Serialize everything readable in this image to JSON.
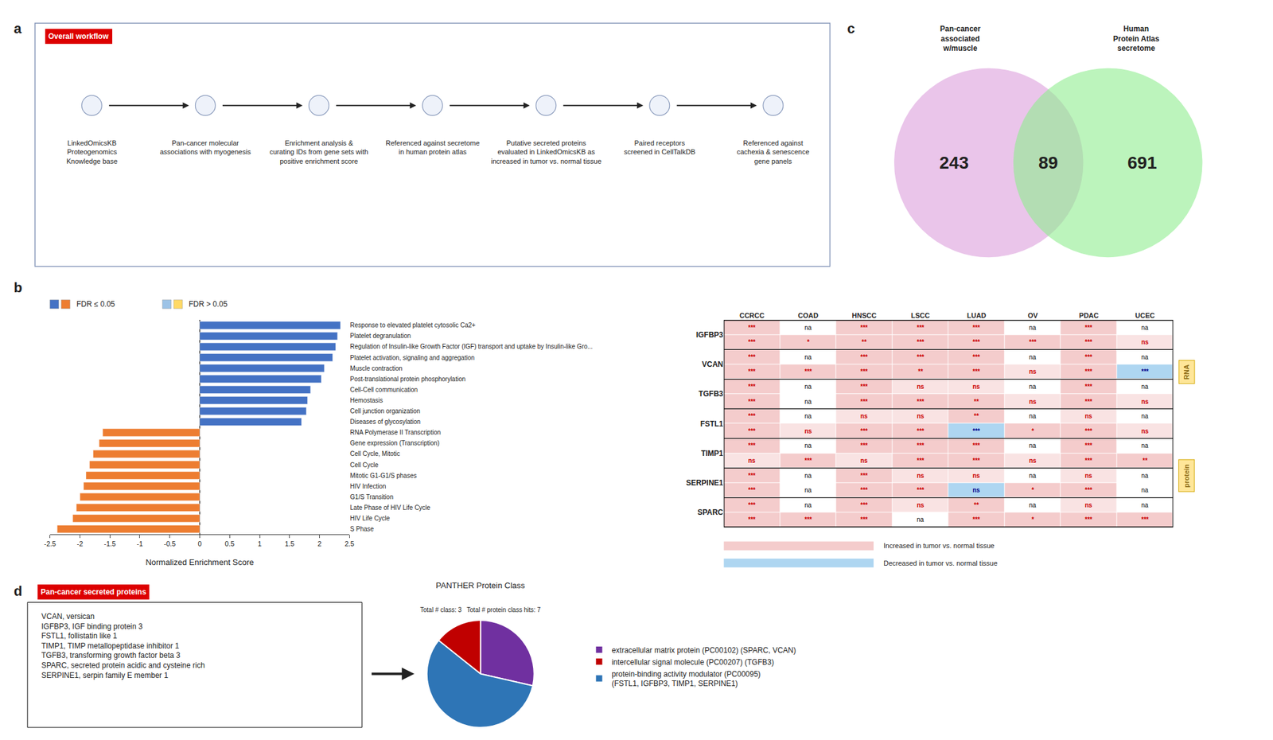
{
  "chart_data": [
    {
      "type": "workflow",
      "panel": "a",
      "title": "Overall workflow",
      "color": "#DD0000",
      "steps": [
        "LinkedOmicsKB\nProteogenomics\nKnowledge base",
        "Pan-cancer molecular\nassociations with myogenesis",
        "Enrichment analysis &\ncurating IDs from gene sets with\npositive enrichment score",
        "Referenced against secretome\nin human protein atlas",
        "Putative secreted proteins\nevaluated in LinkedOmicsKB as\nincreased in tumor vs. normal tissue",
        "Paired receptors\nscreened in CellTalkDB",
        "Referenced against\ncachexia & senescence\ngene panels"
      ]
    },
    {
      "type": "venn",
      "panel": "c",
      "sets": [
        "Pan-cancer\nassociated\nw/muscle",
        "Human\nProtein Atlas\nsecretome"
      ],
      "values": [
        243,
        89,
        691
      ],
      "colors": [
        "#DDA0DD",
        "#90EE90"
      ]
    },
    {
      "type": "bar",
      "panel": "b",
      "orientation": "horizontal",
      "categories": [
        "Response to elevated platelet cytosolic Ca2+",
        "Platelet degranulation",
        "Regulation of Insulin-like Growth Factor (IGF) transport and uptake by Insulin-like Gro...",
        "Platelet activation, signaling and aggregation",
        "Muscle contraction",
        "Post-translational protein phosphorylation",
        "Cell-Cell communication",
        "Hemostasis",
        "Cell junction organization",
        "Diseases of glycosylation",
        "RNA Polymerase II Transcription",
        "Gene expression (Transcription)",
        "Cell Cycle, Mitotic",
        "Cell Cycle",
        "Mitotic G1-G1/S phases",
        "HIV Infection",
        "G1/S Transition",
        "Late Phase of HIV Life Cycle",
        "HIV Life Cycle",
        "S Phase"
      ],
      "values": [
        2.35,
        2.3,
        2.27,
        2.22,
        2.08,
        2.03,
        1.85,
        1.8,
        1.78,
        1.7,
        -1.62,
        -1.68,
        -1.78,
        -1.84,
        -1.9,
        -1.94,
        -2.0,
        -2.06,
        -2.12,
        -2.38
      ],
      "colors": [
        "#4472C4",
        "#4472C4",
        "#4472C4",
        "#4472C4",
        "#4472C4",
        "#4472C4",
        "#4472C4",
        "#4472C4",
        "#4472C4",
        "#4472C4",
        "#ED7D31",
        "#ED7D31",
        "#ED7D31",
        "#ED7D31",
        "#ED7D31",
        "#ED7D31",
        "#ED7D31",
        "#ED7D31",
        "#ED7D31",
        "#ED7D31"
      ],
      "xlabel": "Normalized Enrichment Score",
      "xlim": [
        -2.5,
        2.5
      ],
      "xticks": [
        -2.5,
        -2,
        -1.5,
        -1,
        -0.5,
        0,
        0.5,
        1,
        1.5,
        2,
        2.5
      ],
      "grid": false,
      "legend_items": [
        {
          "label": "FDR ≤ 0.05",
          "colors": [
            "#4472C4",
            "#ED7D31"
          ]
        },
        {
          "label": "FDR > 0.05",
          "colors": [
            "#9DC3E6",
            "#FFD966"
          ]
        }
      ]
    },
    {
      "type": "heatmap",
      "rows": [
        "IGFBP3",
        "VCAN",
        "TGFB3",
        "FSTL1",
        "TIMP1",
        "SERPINE1",
        "SPARC"
      ],
      "columns": [
        "CCRCC",
        "COAD",
        "HNSCC",
        "LSCC",
        "LUAD",
        "OV",
        "PDAC",
        "UCEC"
      ],
      "row_groups": [
        "RNA",
        "protein"
      ],
      "rna": [
        [
          "***",
          "na",
          "***",
          "***",
          "***",
          "na",
          "***",
          "na"
        ],
        [
          "***",
          "na",
          "***",
          "***",
          "***",
          "na",
          "***",
          "na"
        ],
        [
          "***",
          "na",
          "***",
          "ns",
          "ns",
          "na",
          "***",
          "na"
        ],
        [
          "***",
          "na",
          "ns",
          "ns",
          "**",
          "na",
          "ns",
          "na"
        ],
        [
          "***",
          "na",
          "***",
          "***",
          "***",
          "na",
          "***",
          "na"
        ],
        [
          "***",
          "na",
          "***",
          "ns",
          "ns",
          "na",
          "ns",
          "na"
        ],
        [
          "***",
          "na",
          "***",
          "ns",
          "**",
          "na",
          "ns",
          "na"
        ]
      ],
      "protein": [
        [
          "***",
          "*",
          "**",
          "***",
          "***",
          "***",
          "***",
          "ns"
        ],
        [
          "***",
          "***",
          "***",
          "**",
          "***",
          "ns",
          "***",
          "***"
        ],
        [
          "***",
          "na",
          "***",
          "***",
          "**",
          "ns",
          "***",
          "ns"
        ],
        [
          "***",
          "ns",
          "***",
          "***",
          "***",
          "*",
          "***",
          "ns"
        ],
        [
          "ns",
          "***",
          "ns",
          "***",
          "***",
          "ns",
          "***",
          "**"
        ],
        [
          "***",
          "na",
          "***",
          "***",
          "ns",
          "*",
          "***",
          "na"
        ],
        [
          "***",
          "***",
          "***",
          "na",
          "***",
          "*",
          "***",
          "***"
        ]
      ],
      "rna_decreased": [
        [
          false,
          false,
          false,
          false,
          false,
          false,
          false,
          false
        ],
        [
          false,
          false,
          false,
          false,
          false,
          false,
          false,
          false
        ],
        [
          false,
          false,
          false,
          false,
          false,
          false,
          false,
          false
        ],
        [
          false,
          false,
          false,
          false,
          false,
          false,
          false,
          false
        ],
        [
          false,
          false,
          false,
          false,
          false,
          false,
          false,
          false
        ],
        [
          false,
          false,
          false,
          false,
          false,
          false,
          false,
          false
        ],
        [
          false,
          false,
          false,
          false,
          false,
          false,
          false,
          false
        ]
      ],
      "protein_decreased": [
        [
          false,
          false,
          false,
          false,
          false,
          false,
          false,
          false
        ],
        [
          false,
          false,
          false,
          false,
          false,
          false,
          false,
          true
        ],
        [
          false,
          false,
          false,
          false,
          false,
          false,
          false,
          false
        ],
        [
          false,
          false,
          false,
          false,
          true,
          false,
          false,
          false
        ],
        [
          false,
          false,
          false,
          false,
          false,
          false,
          false,
          false
        ],
        [
          false,
          false,
          false,
          false,
          true,
          false,
          false,
          false
        ],
        [
          false,
          false,
          false,
          false,
          false,
          false,
          false,
          false
        ]
      ],
      "series": [
        {
          "name": "Increased in tumor vs. normal tissue",
          "color": "#F4CCCC"
        },
        {
          "name": "Decreased in tumor vs. normal tissue",
          "color": "#AED6F1"
        }
      ]
    },
    {
      "type": "list",
      "panel": "d",
      "title": "Pan-cancer secreted proteins",
      "color": "#DD0000",
      "items": [
        "VCAN, versican",
        "IGFBP3, IGF binding protein 3",
        "FSTL1, follistatin like 1",
        "TIMP1, TIMP metallopeptidase inhibitor 1",
        "TGFB3, transforming growth factor beta 3",
        "SPARC, secreted protein acidic and cysteine rich",
        "SERPINE1, serpin family E member 1"
      ]
    },
    {
      "type": "pie",
      "title": "PANTHER Protein Class",
      "subtitle": "Total # class: 3   Total # protein class hits: 7",
      "categories": [
        "extracellular matrix protein (PC00102) (SPARC, VCAN)",
        "intercellular signal molecule (PC00207) (TGFB3)",
        "protein-binding activity modulator (PC00095)\n(FSTL1, IGFBP3, TIMP1, SERPINE1)"
      ],
      "values": [
        2,
        1,
        4
      ],
      "colors": [
        "#7030A0",
        "#C00000",
        "#2E75B6"
      ]
    }
  ]
}
